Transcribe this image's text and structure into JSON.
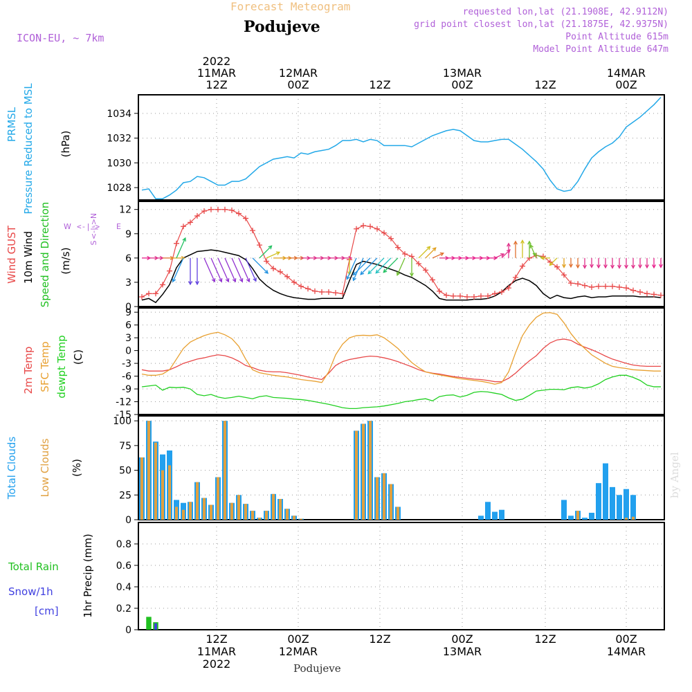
{
  "header": {
    "subtitle": "Forecast Meteogram",
    "station": "Podujeve",
    "model": "ICON-EU, ~ 7km",
    "requested": "requested lon,lat (21.1908E, 42.9112N)",
    "gridpoint": "grid point closest lon,lat (21.1875E, 42.9375N)",
    "point_alt": "Point Altitude 615m",
    "model_alt": "Model Point Altitude 647m",
    "bottom_label": "Podujeve",
    "watermark": "by Angel"
  },
  "colors": {
    "pressure": "#22a8e8",
    "gust": "#e84848",
    "wind": "#000000",
    "t2m": "#e84848",
    "sfc": "#e8a030",
    "dewpt": "#20d020",
    "total_clouds": "#22a0ee",
    "low_clouds": "#e0a040",
    "rain": "#20c020",
    "snow": "#4040e0",
    "header_purple": "#b060d8",
    "header_orange": "#f0c080"
  },
  "chart_data": [
    {
      "type": "line",
      "title": "PRMSL Pressure Reduced to MSL",
      "ylabel": "(hPa)",
      "ylim": [
        1027,
        1035.5
      ],
      "yticks": [
        1028,
        1030,
        1032,
        1034
      ],
      "series": [
        {
          "name": "PRMSL",
          "values": [
            1027.8,
            1027.9,
            1027.1,
            1027.1,
            1027.4,
            1027.8,
            1028.4,
            1028.5,
            1028.9,
            1028.8,
            1028.5,
            1028.2,
            1028.2,
            1028.5,
            1028.5,
            1028.7,
            1029.2,
            1029.7,
            1030.0,
            1030.3,
            1030.4,
            1030.5,
            1030.4,
            1030.8,
            1030.7,
            1030.9,
            1031.0,
            1031.1,
            1031.4,
            1031.8,
            1031.8,
            1031.9,
            1031.7,
            1031.9,
            1031.8,
            1031.4,
            1031.4,
            1031.4,
            1031.4,
            1031.3,
            1031.6,
            1031.9,
            1032.2,
            1032.4,
            1032.6,
            1032.7,
            1032.6,
            1032.2,
            1031.8,
            1031.7,
            1031.7,
            1031.8,
            1031.9,
            1031.9,
            1031.5,
            1031.1,
            1030.6,
            1030.1,
            1029.5,
            1028.6,
            1027.9,
            1027.7,
            1027.8,
            1028.5,
            1029.5,
            1030.4,
            1030.9,
            1031.3,
            1031.6,
            1032.1,
            1032.9,
            1033.3,
            1033.7,
            1034.2,
            1034.7,
            1035.3
          ]
        }
      ],
      "wind_barb_hint": "W <-|-> E, S<-|->N"
    },
    {
      "type": "line",
      "title": "Wind GUST / 10m Wind Speed and Direction",
      "ylabel": "(m/s)",
      "ylim": [
        0,
        13
      ],
      "yticks": [
        0,
        3,
        6,
        9,
        12
      ],
      "series": [
        {
          "name": "Wind GUST",
          "values": [
            1.2,
            1.6,
            1.6,
            2.7,
            4.4,
            7.8,
            9.9,
            10.4,
            11.2,
            11.8,
            12.0,
            12.0,
            12.0,
            11.9,
            11.5,
            10.9,
            9.4,
            7.6,
            5.6,
            4.7,
            4.3,
            3.7,
            3.0,
            2.5,
            2.2,
            1.9,
            1.8,
            1.8,
            1.7,
            1.6,
            5.8,
            9.6,
            10.0,
            9.9,
            9.6,
            9.1,
            8.4,
            7.3,
            6.5,
            6.2,
            5.3,
            4.5,
            3.3,
            1.9,
            1.4,
            1.3,
            1.3,
            1.2,
            1.2,
            1.3,
            1.3,
            1.6,
            1.8,
            2.3,
            3.6,
            5.0,
            6.0,
            6.3,
            6.2,
            5.5,
            4.9,
            3.9,
            2.9,
            2.8,
            2.6,
            2.4,
            2.5,
            2.5,
            2.5,
            2.4,
            2.3,
            2.0,
            1.8,
            1.6,
            1.5,
            1.4
          ]
        },
        {
          "name": "10m Wind",
          "values": [
            0.8,
            1.0,
            0.5,
            1.5,
            2.7,
            4.8,
            6.0,
            6.4,
            6.8,
            6.9,
            7.0,
            6.9,
            6.7,
            6.5,
            6.3,
            5.8,
            4.7,
            3.4,
            2.6,
            2.0,
            1.6,
            1.3,
            1.1,
            1.0,
            0.9,
            0.9,
            1.0,
            1.0,
            1.0,
            1.0,
            3.2,
            5.2,
            5.6,
            5.4,
            5.2,
            4.9,
            4.6,
            4.3,
            3.9,
            3.6,
            3.1,
            2.6,
            1.9,
            1.0,
            0.8,
            0.8,
            0.8,
            0.8,
            0.9,
            0.9,
            1.0,
            1.3,
            1.8,
            2.6,
            3.2,
            3.5,
            3.2,
            2.6,
            1.6,
            1.0,
            1.4,
            1.1,
            1.0,
            1.2,
            1.3,
            1.1,
            1.2,
            1.2,
            1.3,
            1.3,
            1.3,
            1.3,
            1.2,
            1.2,
            1.2,
            1.1
          ]
        }
      ]
    },
    {
      "type": "line",
      "title": "2m Temp / SFC Temp / dewpt Temp",
      "ylabel": "(C)",
      "ylim": [
        -15,
        10
      ],
      "yticks": [
        -15,
        -12,
        -9,
        -6,
        -3,
        0,
        3,
        6,
        9
      ],
      "series": [
        {
          "name": "2m Temp",
          "values": [
            -4.5,
            -4.8,
            -4.8,
            -4.8,
            -4.5,
            -3.8,
            -3.0,
            -2.5,
            -2.0,
            -1.7,
            -1.3,
            -1.0,
            -1.2,
            -1.7,
            -2.5,
            -3.5,
            -4.0,
            -4.6,
            -4.9,
            -5.0,
            -5.0,
            -5.2,
            -5.5,
            -5.8,
            -6.2,
            -6.5,
            -6.8,
            -5.3,
            -3.5,
            -2.6,
            -2.1,
            -1.8,
            -1.5,
            -1.3,
            -1.4,
            -1.7,
            -2.1,
            -2.6,
            -3.2,
            -3.8,
            -4.5,
            -5.0,
            -5.3,
            -5.5,
            -5.8,
            -6.1,
            -6.3,
            -6.5,
            -6.7,
            -6.8,
            -7.0,
            -7.3,
            -7.3,
            -6.5,
            -5.3,
            -3.8,
            -2.4,
            -1.2,
            0.5,
            1.8,
            2.5,
            2.7,
            2.4,
            1.5,
            0.8,
            0.2,
            -0.5,
            -1.3,
            -2.0,
            -2.5,
            -3.0,
            -3.4,
            -3.6,
            -3.7,
            -3.7,
            -3.7
          ]
        },
        {
          "name": "SFC Temp",
          "values": [
            -5.5,
            -5.8,
            -5.8,
            -5.5,
            -4.5,
            -2.0,
            0.5,
            2.0,
            2.8,
            3.5,
            4.0,
            4.3,
            3.7,
            2.8,
            1.0,
            -2.0,
            -4.5,
            -5.2,
            -5.5,
            -5.8,
            -6.0,
            -6.2,
            -6.5,
            -6.8,
            -7.0,
            -7.2,
            -7.5,
            -5.0,
            -1.0,
            1.5,
            3.0,
            3.5,
            3.6,
            3.5,
            3.7,
            3.0,
            1.8,
            0.5,
            -1.2,
            -2.8,
            -4.0,
            -5.0,
            -5.4,
            -5.7,
            -6.0,
            -6.3,
            -6.6,
            -6.8,
            -7.0,
            -7.2,
            -7.5,
            -7.9,
            -7.5,
            -5.0,
            -0.5,
            3.5,
            6.0,
            7.8,
            8.8,
            8.9,
            8.5,
            6.5,
            4.0,
            2.0,
            0.5,
            -1.0,
            -2.0,
            -3.0,
            -3.7,
            -4.0,
            -4.2,
            -4.5,
            -4.6,
            -4.7,
            -4.8,
            -4.8
          ]
        },
        {
          "name": "dewpt Temp",
          "values": [
            -8.5,
            -8.3,
            -8.1,
            -9.3,
            -8.6,
            -8.7,
            -8.6,
            -9.0,
            -10.3,
            -10.6,
            -10.3,
            -10.9,
            -11.2,
            -11.0,
            -10.7,
            -11.0,
            -11.3,
            -10.8,
            -10.6,
            -11.0,
            -11.1,
            -11.2,
            -11.4,
            -11.5,
            -11.7,
            -12.0,
            -12.3,
            -12.6,
            -13.0,
            -13.4,
            -13.6,
            -13.6,
            -13.4,
            -13.3,
            -13.2,
            -13.0,
            -12.7,
            -12.4,
            -12.0,
            -11.8,
            -11.5,
            -11.3,
            -11.8,
            -10.8,
            -10.5,
            -10.4,
            -10.9,
            -10.5,
            -9.8,
            -9.6,
            -9.7,
            -10.0,
            -10.3,
            -11.1,
            -11.7,
            -11.4,
            -10.5,
            -9.5,
            -9.3,
            -9.1,
            -9.1,
            -9.2,
            -8.7,
            -8.5,
            -8.8,
            -8.5,
            -7.8,
            -6.8,
            -6.2,
            -5.8,
            -5.8,
            -6.3,
            -7.0,
            -8.1,
            -8.5,
            -8.5
          ]
        }
      ]
    },
    {
      "type": "bar",
      "title": "Total Clouds / Low Clouds",
      "ylabel": "(%)",
      "ylim": [
        0,
        105
      ],
      "yticks": [
        0,
        25,
        50,
        75,
        100
      ],
      "series": [
        {
          "name": "Total Clouds",
          "values": [
            63,
            100,
            79,
            66,
            70,
            20,
            17,
            18,
            38,
            22,
            15,
            43,
            100,
            17,
            25,
            16,
            9,
            2,
            9,
            26,
            21,
            11,
            4,
            1,
            0,
            0,
            0,
            0,
            0,
            0,
            0,
            90,
            97,
            100,
            43,
            47,
            36,
            13,
            0,
            0,
            0,
            0,
            0,
            0,
            0,
            0,
            0,
            0,
            0,
            4,
            18,
            8,
            10,
            0,
            0,
            0,
            0,
            0,
            0,
            0,
            0,
            20,
            4,
            9,
            2,
            7,
            37,
            57,
            33,
            25,
            31,
            25,
            0,
            0,
            0,
            0
          ]
        },
        {
          "name": "Low Clouds",
          "values": [
            63,
            100,
            78,
            50,
            55,
            13,
            10,
            18,
            38,
            22,
            15,
            43,
            100,
            17,
            25,
            16,
            9,
            2,
            9,
            26,
            21,
            11,
            4,
            1,
            0,
            0,
            0,
            0,
            0,
            0,
            0,
            90,
            97,
            100,
            43,
            47,
            36,
            13,
            0,
            0,
            0,
            0,
            0,
            0,
            0,
            0,
            0,
            0,
            0,
            0,
            0,
            0,
            0,
            0,
            0,
            0,
            0,
            0,
            0,
            0,
            0,
            0,
            0,
            9,
            0,
            0,
            0,
            0,
            0,
            0,
            2,
            3,
            0,
            0,
            0,
            0
          ]
        }
      ]
    },
    {
      "type": "bar",
      "title": "Total Rain / Snow/1h",
      "ylabel": "1hr Precip (mm)",
      "unit_label": "[cm]",
      "ylim": [
        0,
        1.0
      ],
      "yticks": [
        0,
        0.2,
        0.4,
        0.6,
        0.8
      ],
      "series": [
        {
          "name": "Total Rain",
          "values": [
            0,
            0.12,
            0.07,
            0,
            0,
            0,
            0,
            0,
            0,
            0,
            0,
            0,
            0,
            0,
            0,
            0,
            0,
            0,
            0,
            0,
            0,
            0,
            0,
            0,
            0,
            0,
            0,
            0,
            0,
            0,
            0,
            0,
            0,
            0,
            0,
            0,
            0,
            0,
            0,
            0,
            0,
            0,
            0,
            0,
            0,
            0,
            0,
            0,
            0,
            0,
            0,
            0,
            0,
            0,
            0,
            0,
            0,
            0,
            0,
            0,
            0,
            0,
            0,
            0,
            0,
            0,
            0,
            0,
            0,
            0,
            0,
            0,
            0,
            0,
            0,
            0
          ]
        },
        {
          "name": "Snow/1h",
          "values": [
            0,
            0,
            0.06,
            0,
            0,
            0,
            0,
            0,
            0,
            0,
            0,
            0,
            0,
            0,
            0,
            0,
            0,
            0,
            0,
            0,
            0,
            0,
            0,
            0,
            0,
            0,
            0,
            0,
            0,
            0,
            0,
            0,
            0,
            0,
            0,
            0,
            0,
            0,
            0,
            0,
            0,
            0,
            0,
            0,
            0,
            0,
            0,
            0,
            0,
            0,
            0,
            0,
            0,
            0,
            0,
            0,
            0,
            0,
            0,
            0,
            0,
            0,
            0,
            0,
            0,
            0,
            0,
            0,
            0,
            0,
            0,
            0,
            0,
            0,
            0,
            0
          ]
        }
      ]
    }
  ],
  "time_axis": {
    "top": [
      {
        "lines": [
          "2022",
          "11MAR",
          "12Z"
        ]
      },
      {
        "lines": [
          "12MAR",
          "00Z"
        ]
      },
      {
        "lines": [
          "12Z"
        ]
      },
      {
        "lines": [
          "13MAR",
          "00Z"
        ]
      },
      {
        "lines": [
          "12Z"
        ]
      },
      {
        "lines": [
          "14MAR",
          "00Z"
        ]
      }
    ],
    "bottom": [
      {
        "lines": [
          "12Z",
          "11MAR",
          "2022"
        ]
      },
      {
        "lines": [
          "00Z",
          "12MAR"
        ]
      },
      {
        "lines": [
          "12Z"
        ]
      },
      {
        "lines": [
          "00Z",
          "13MAR"
        ]
      },
      {
        "lines": [
          "12Z"
        ]
      },
      {
        "lines": [
          "00Z",
          "14MAR"
        ]
      }
    ]
  },
  "wind_dirs": [
    "E",
    "E",
    "E",
    "E",
    "E",
    "NNE",
    "SSW",
    "S",
    "S",
    "SSE",
    "SSE",
    "SSE",
    "SSE",
    "SSE",
    "SSE",
    "SSE",
    "SE",
    "NE",
    "ENE",
    "E",
    "E",
    "E",
    "E",
    "E",
    "E",
    "E",
    "E",
    "E",
    "E",
    "E",
    "S",
    "SSW",
    "SSW",
    "SW",
    "SW",
    "SW",
    "SW",
    "SW",
    "SSW",
    "S",
    "NE",
    "NE",
    "ENE",
    "E",
    "E",
    "E",
    "E",
    "E",
    "E",
    "E",
    "E",
    "ENE",
    "NE",
    "N",
    "N",
    "N",
    "N",
    "NNW",
    "WNW",
    "W",
    "SW",
    "S",
    "S",
    "S",
    "S",
    "S",
    "S",
    "S",
    "S",
    "S",
    "S",
    "S",
    "S",
    "S",
    "S",
    "S"
  ],
  "side_labels": {
    "p1": [
      "PRMSL",
      "Pressure Reduced to MSL"
    ],
    "p1_unit": "(hPa)",
    "p2": [
      "Wind GUST",
      "10m Wind",
      "Speed and Direction"
    ],
    "p2_unit": "(m/s)",
    "p3": [
      "2m Temp",
      "SFC Temp",
      "dewpt Temp"
    ],
    "p3_unit": "(C)",
    "p4": [
      "Total Clouds",
      "Low Clouds"
    ],
    "p4_unit": "(%)",
    "p5_left": [
      "Total  Rain",
      "Snow/1h",
      "[cm]"
    ],
    "p5_unit": "1hr Precip (mm)",
    "compass": [
      "N",
      "E",
      "S",
      "W"
    ]
  }
}
